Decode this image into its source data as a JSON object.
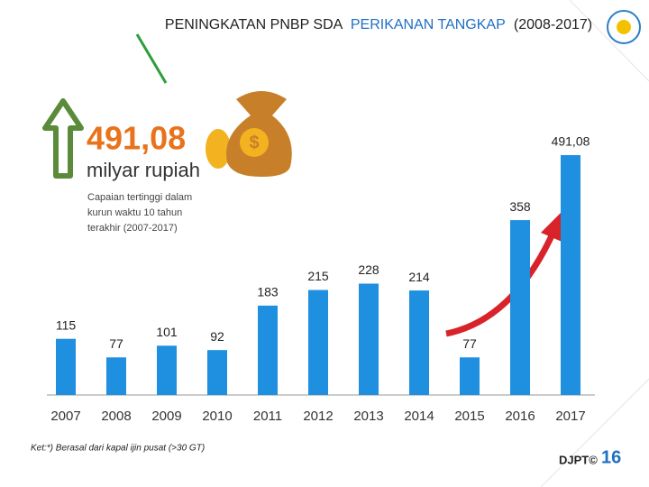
{
  "chart_data": {
    "type": "bar",
    "title": {
      "part1": "PENINGKATAN PNBP SDA",
      "part2": "PERIKANAN TANGKAP",
      "part3": "(2008-2017)"
    },
    "categories": [
      "2007",
      "2008",
      "2009",
      "2010",
      "2011",
      "2012",
      "2013",
      "2014",
      "2015",
      "2016",
      "2017"
    ],
    "values": [
      115,
      77,
      101,
      92,
      183,
      215,
      228,
      214,
      77,
      358,
      491.08
    ],
    "value_labels": [
      "115",
      "77",
      "101",
      "92",
      "183",
      "215",
      "228",
      "214",
      "77",
      "358",
      "491,08"
    ],
    "color": "#1f8fe0",
    "highlight": {
      "value": "491,08",
      "unit": "milyar rupiah",
      "note": [
        "Capaian tertinggi dalam",
        "kurun waktu 10 tahun",
        "terakhir (2007-2017)"
      ]
    },
    "footnote": "Ket:*) Berasal dari kapal ijin pusat (>30 GT)",
    "footer": {
      "org": "DJPT©",
      "page": "16"
    }
  }
}
